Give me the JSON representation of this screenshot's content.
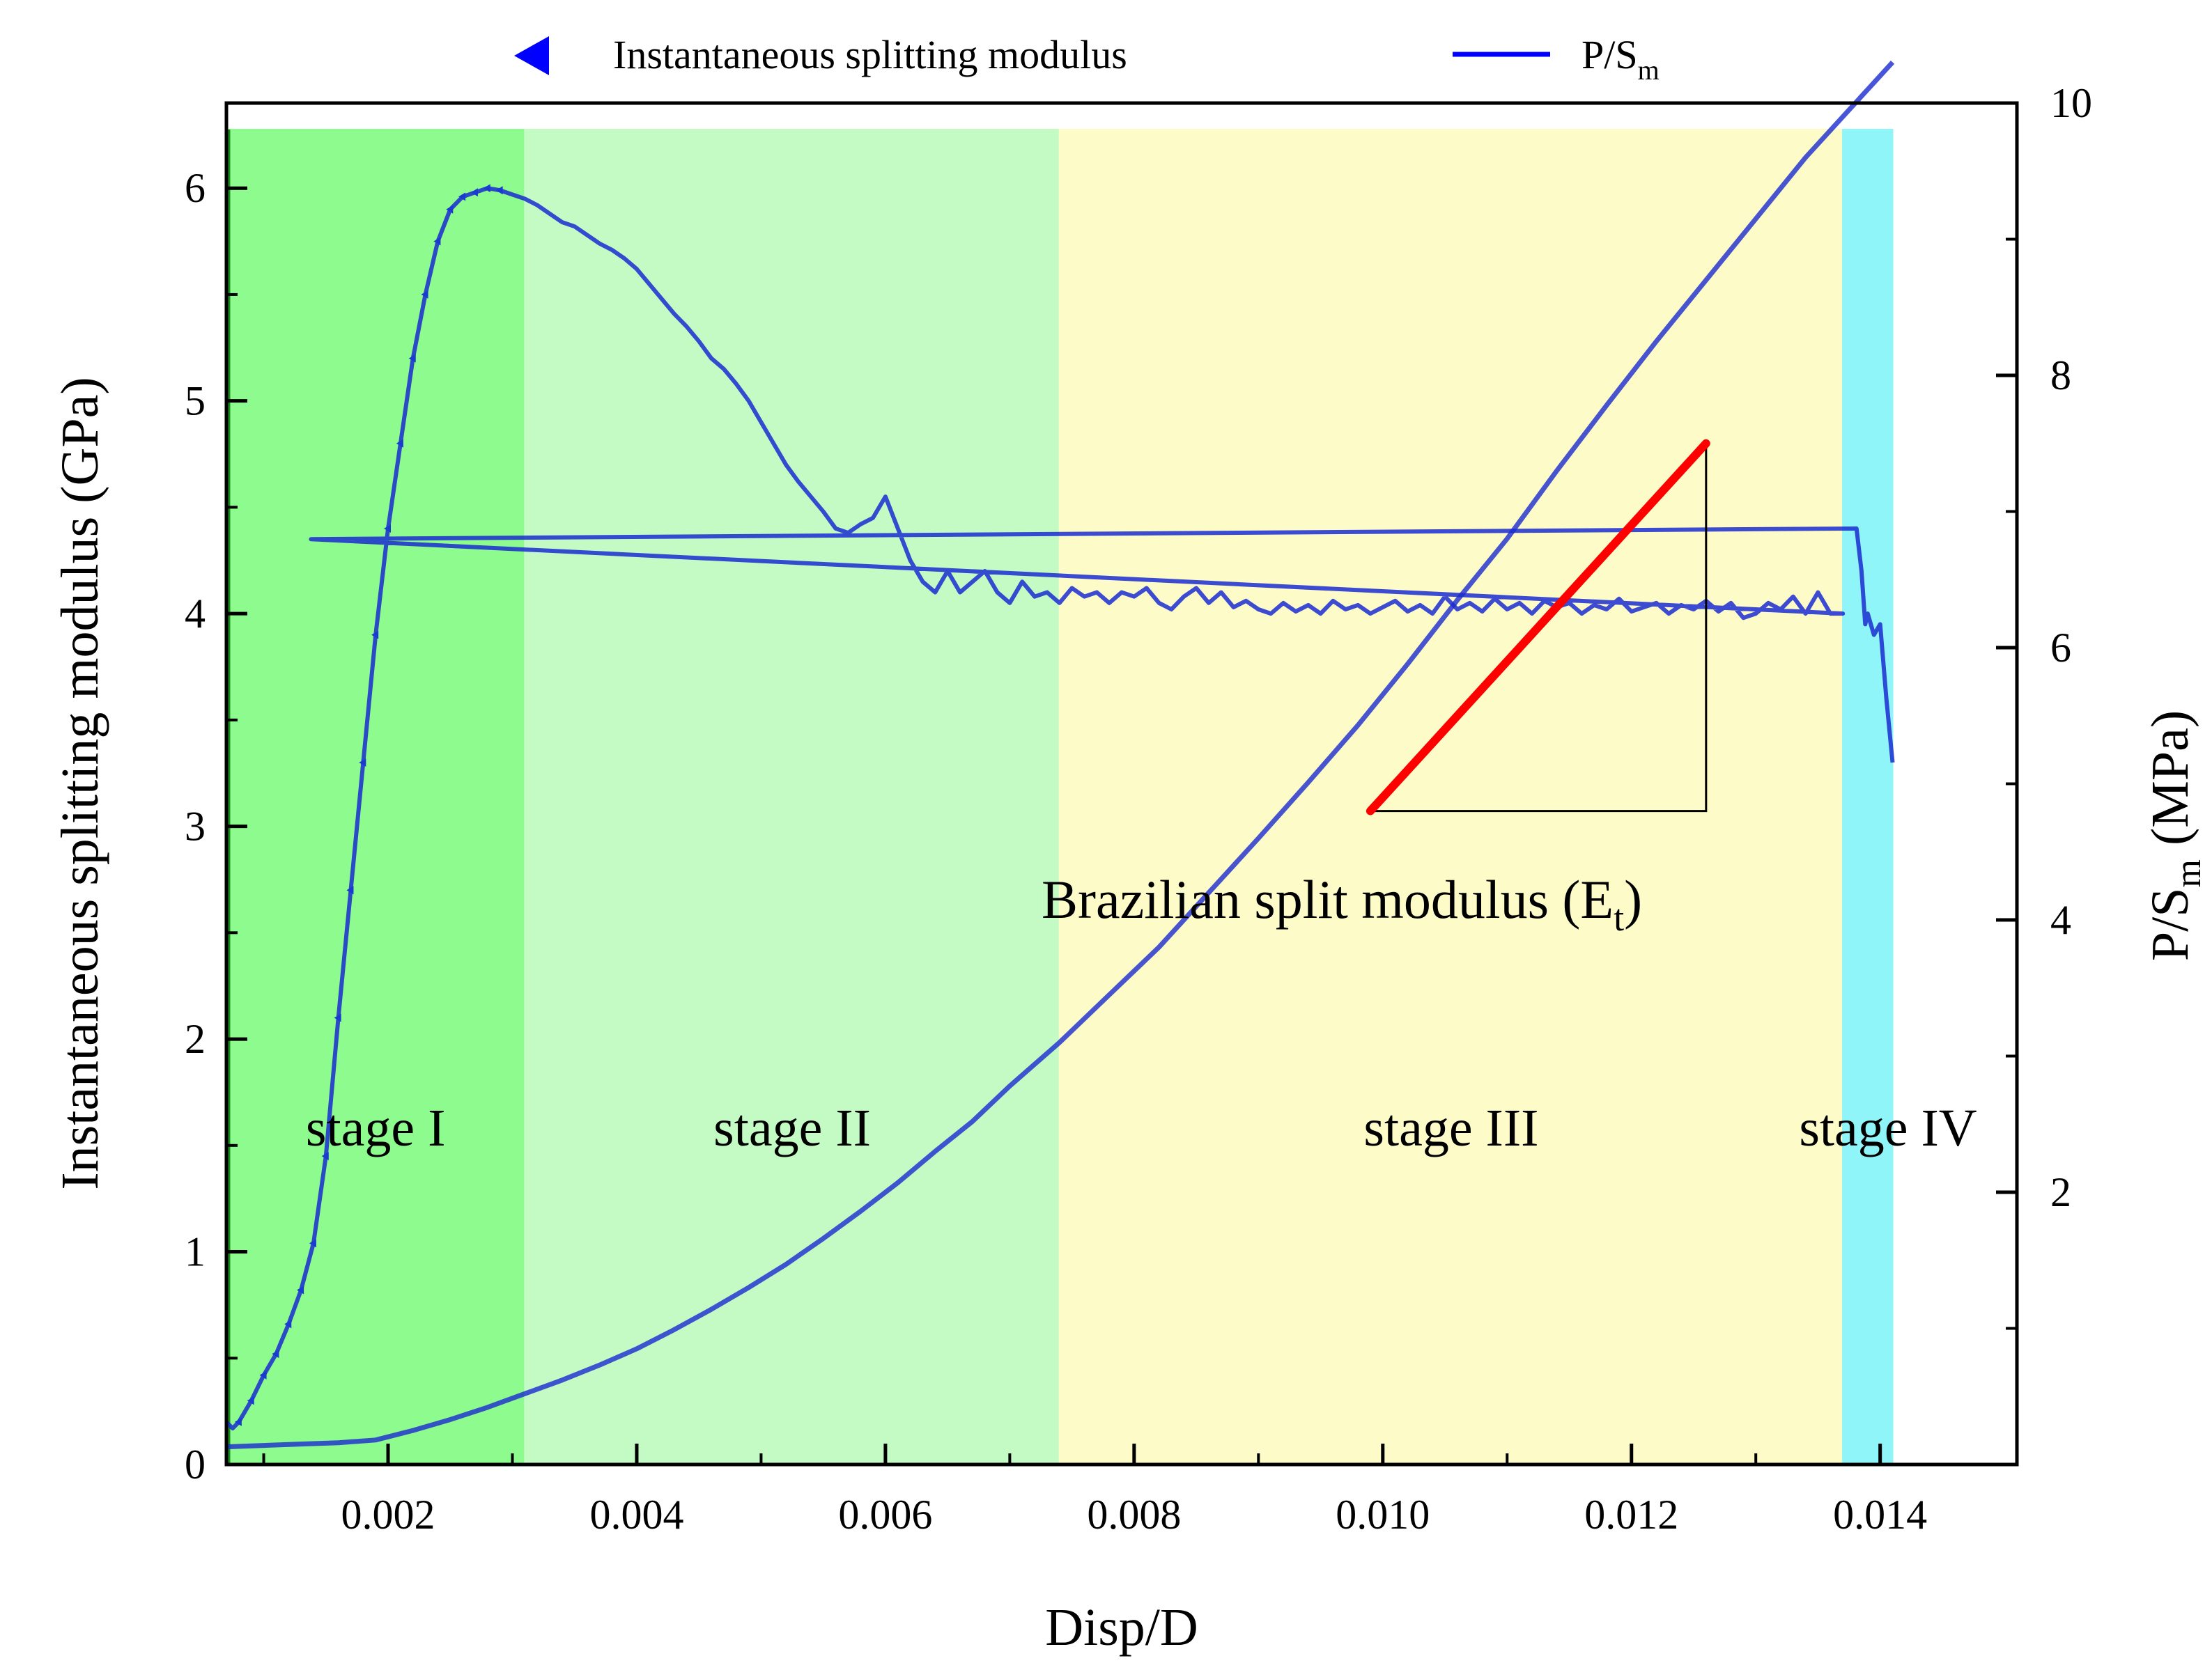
{
  "chart_data": {
    "type": "line",
    "title": "",
    "xlabel": "Disp/D",
    "ylabel_left": "Instantaneous splitting modulus (GPa)",
    "ylabel_right": {
      "main": "P/S",
      "sub": "m",
      "unit": "(MPa)"
    },
    "xlim": [
      0.0007,
      0.0151
    ],
    "ylim_left": [
      0,
      6.4
    ],
    "ylim_right": [
      0,
      10
    ],
    "x_ticks": [
      0.002,
      0.004,
      0.006,
      0.008,
      0.01,
      0.012,
      0.014
    ],
    "x_tick_labels": [
      "0.002",
      "0.004",
      "0.006",
      "0.008",
      "0.010",
      "0.012",
      "0.014"
    ],
    "y_left_ticks": [
      0,
      1,
      2,
      3,
      4,
      5,
      6
    ],
    "y_left_tick_labels": [
      "0",
      "1",
      "2",
      "3",
      "4",
      "5",
      "6"
    ],
    "y_right_ticks": [
      2,
      4,
      6,
      8,
      10
    ],
    "y_right_tick_labels": [
      "2",
      "4",
      "6",
      "8",
      "10"
    ],
    "legend": {
      "placement": "top",
      "entries": [
        {
          "label": "Instantaneous splitting modulus",
          "marker": "left-triangle",
          "color": "#0000ff"
        },
        {
          "label": "P/S",
          "sub": "m",
          "marker": "line",
          "color": "#0000ff"
        }
      ]
    },
    "stages": [
      {
        "label": "stage I",
        "x_start": 0.0007,
        "x_end": 0.0031,
        "color": "#8dfb8d"
      },
      {
        "label": "stage II",
        "x_start": 0.0031,
        "x_end": 0.0074,
        "color": "#c4fbc4"
      },
      {
        "label": "stage III",
        "x_start": 0.0074,
        "x_end": 0.0137,
        "color": "#fdfbc8"
      },
      {
        "label": "stage IV",
        "x_start": 0.0137,
        "x_end": 0.0141,
        "color": "#8ff5f8"
      }
    ],
    "series": [
      {
        "name": "Instantaneous splitting modulus",
        "axis": "left",
        "color": "#1a2bd0",
        "x": [
          0.0007,
          0.00075,
          0.0008,
          0.0009,
          0.001,
          0.0011,
          0.0012,
          0.0013,
          0.0014,
          0.0015,
          0.0016,
          0.0017,
          0.0018,
          0.0019,
          0.002,
          0.0021,
          0.0022,
          0.0023,
          0.0024,
          0.0025,
          0.0026,
          0.0027,
          0.0028,
          0.0029,
          0.003,
          0.0031,
          0.0032,
          0.0033,
          0.0034,
          0.0035,
          0.0036,
          0.0037,
          0.0038,
          0.0039,
          0.004,
          0.0041,
          0.0042,
          0.0043,
          0.0044,
          0.0045,
          0.0046,
          0.0047,
          0.0048,
          0.0049,
          0.005,
          0.0051,
          0.0052,
          0.0053,
          0.0054,
          0.0055,
          0.0056,
          0.0057,
          0.0058,
          0.0059,
          0.006,
          0.0061,
          0.0062,
          0.0063,
          0.0064,
          0.0065,
          0.0066,
          0.0067,
          0.0068,
          0.0069,
          0.007,
          0.0071,
          0.0072,
          0.0073,
          0.0074,
          0.0075,
          0.0076,
          0.0077,
          0.0078,
          0.0079,
          0.008,
          0.0081,
          0.0082,
          0.0083,
          0.0084,
          0.0085,
          0.0086,
          0.0087,
          0.0088,
          0.0089,
          0.009,
          0.0091,
          0.0092,
          0.0093,
          0.0094,
          0.0095,
          0.0096,
          0.0097,
          0.0098,
          0.0099,
          0.01,
          0.0101,
          0.0102,
          0.0103,
          0.0104,
          0.0105,
          0.0106,
          0.0107,
          0.0108,
          0.0109,
          0.011,
          0.0111,
          0.0112,
          0.0113,
          0.0114,
          0.0115,
          0.0116,
          0.0117,
          0.0118,
          0.0119,
          0.012,
          0.0121,
          0.0122,
          0.0123,
          0.0124,
          0.0125,
          0.0126,
          0.0127,
          0.0128,
          0.0129,
          0.013,
          0.0131,
          0.0132,
          0.0133,
          0.0134,
          0.0135,
          0.0136,
          0.0137,
          0.00138,
          0.01381,
          0.01385,
          0.01388,
          0.0139,
          0.01395,
          0.014,
          0.01405,
          0.0141
        ],
        "values": [
          0.2,
          0.17,
          0.2,
          0.3,
          0.42,
          0.52,
          0.66,
          0.82,
          1.04,
          1.45,
          2.1,
          2.7,
          3.3,
          3.9,
          4.4,
          4.8,
          5.2,
          5.5,
          5.75,
          5.9,
          5.96,
          5.98,
          6.0,
          5.99,
          5.97,
          5.95,
          5.92,
          5.88,
          5.84,
          5.82,
          5.78,
          5.74,
          5.71,
          5.67,
          5.62,
          5.55,
          5.48,
          5.41,
          5.35,
          5.28,
          5.2,
          5.15,
          5.08,
          5.0,
          4.9,
          4.8,
          4.7,
          4.62,
          4.55,
          4.48,
          4.4,
          4.38,
          4.42,
          4.45,
          4.55,
          4.4,
          4.25,
          4.15,
          4.1,
          4.2,
          4.1,
          4.15,
          4.2,
          4.1,
          4.05,
          4.15,
          4.08,
          4.1,
          4.05,
          4.12,
          4.08,
          4.1,
          4.05,
          4.1,
          4.08,
          4.12,
          4.05,
          4.02,
          4.08,
          4.12,
          4.05,
          4.1,
          4.03,
          4.06,
          4.02,
          4.0,
          4.05,
          4.01,
          4.04,
          4.0,
          4.06,
          4.02,
          4.04,
          4.0,
          4.03,
          4.06,
          4.01,
          4.04,
          4.0,
          4.08,
          4.02,
          4.05,
          4.01,
          4.07,
          4.02,
          4.05,
          4.0,
          4.06,
          4.03,
          4.05,
          4.0,
          4.04,
          4.02,
          4.07,
          4.01,
          4.03,
          4.05,
          4.0,
          4.04,
          4.02,
          4.06,
          4.01,
          4.05,
          3.98,
          4.0,
          4.05,
          4.02,
          4.08,
          4.0,
          4.1,
          4.0,
          4.0,
          4.35,
          4.4,
          4.2,
          3.95,
          4.0,
          3.9,
          3.95,
          3.6,
          3.3
        ]
      },
      {
        "name": "P/Sm",
        "axis": "right",
        "color": "#1a2bd0",
        "x": [
          0.0007,
          0.001,
          0.0013,
          0.0016,
          0.0019,
          0.0022,
          0.0025,
          0.0028,
          0.0031,
          0.0034,
          0.0037,
          0.004,
          0.0043,
          0.0046,
          0.0049,
          0.0052,
          0.0055,
          0.0058,
          0.0061,
          0.0064,
          0.0067,
          0.007,
          0.0074,
          0.0078,
          0.0082,
          0.0086,
          0.009,
          0.0094,
          0.0098,
          0.0102,
          0.0106,
          0.011,
          0.0114,
          0.0118,
          0.0122,
          0.0126,
          0.013,
          0.0134,
          0.0137,
          0.0139,
          0.0141
        ],
        "values": [
          0.13,
          0.14,
          0.15,
          0.16,
          0.18,
          0.25,
          0.33,
          0.42,
          0.52,
          0.62,
          0.73,
          0.85,
          0.99,
          1.14,
          1.3,
          1.47,
          1.66,
          1.86,
          2.07,
          2.3,
          2.52,
          2.78,
          3.1,
          3.45,
          3.8,
          4.2,
          4.6,
          5.01,
          5.43,
          5.88,
          6.35,
          6.8,
          7.3,
          7.78,
          8.25,
          8.7,
          9.15,
          9.6,
          9.9,
          10.1,
          10.3
        ]
      }
    ],
    "annotation": {
      "text": "Brazilian split modulus (E",
      "sub": "t",
      "tail": ")",
      "fit_line": {
        "x": [
          0.0099,
          0.0126
        ],
        "y_right": [
          4.8,
          7.5
        ],
        "color": "#ff0000"
      }
    }
  }
}
